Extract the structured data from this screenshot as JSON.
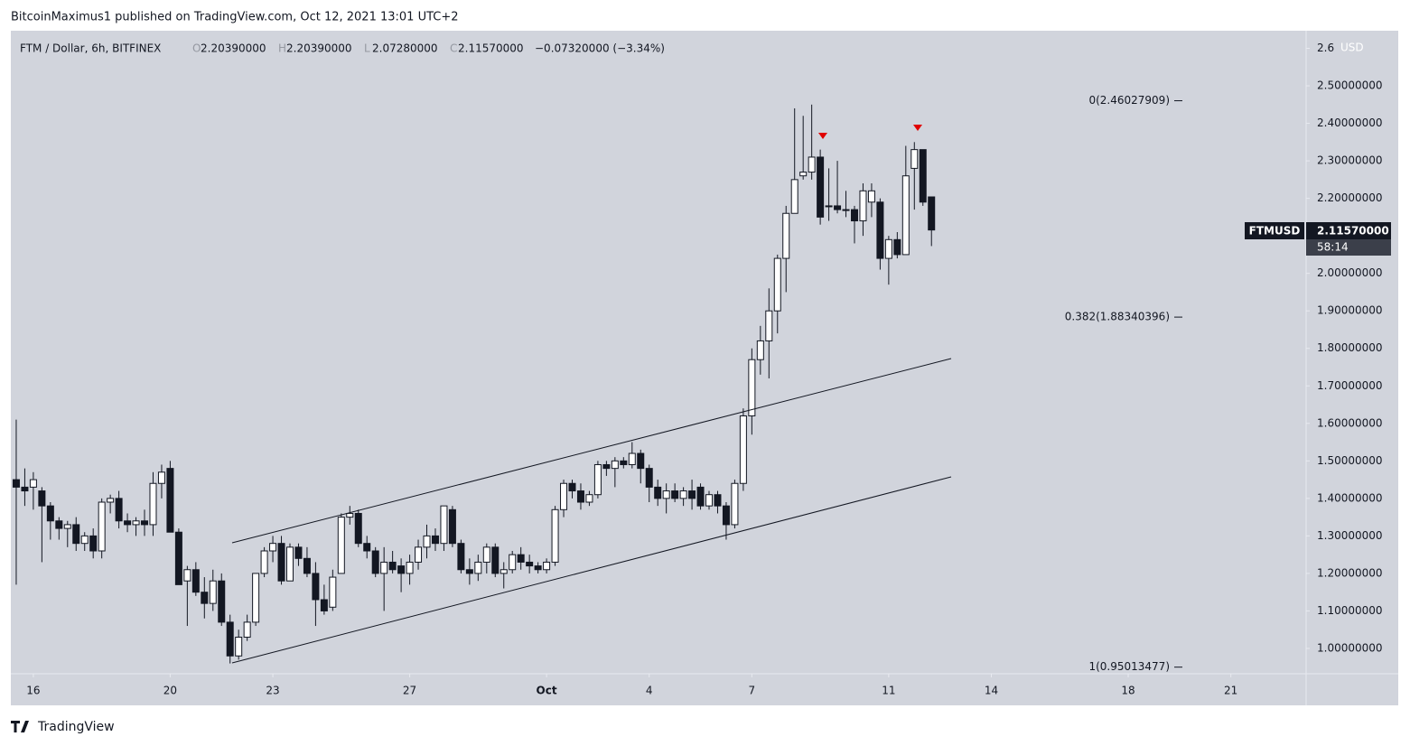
{
  "header": {
    "byline": "BitcoinMaximus1 published on TradingView.com, Oct 12, 2021 13:01 UTC+2"
  },
  "footer": {
    "brand": "TradingView"
  },
  "chart_data": {
    "type": "candlestick",
    "symbol_line": "FTM / Dollar, 6h, BITFINEX",
    "ohlc_header": [
      {
        "key": "O",
        "text": "2.20390000"
      },
      {
        "key": "H",
        "text": "2.20390000"
      },
      {
        "key": "L",
        "text": "2.07280000"
      },
      {
        "key": "C",
        "text": "2.11570000"
      }
    ],
    "change_text": "−0.07320000 (−3.34%)",
    "currency": "USD",
    "ticker": "FTMUSD",
    "last_price_label": "2.11570000",
    "countdown": "58:14",
    "up_color": "#ffffff",
    "down_color": "#131722",
    "ylim": [
      0.9325,
      2.647
    ],
    "xlim": [
      -0.63,
      150.8
    ],
    "yticks": [
      {
        "value": 1.0,
        "label": "1.00000000"
      },
      {
        "value": 1.1,
        "label": "1.10000000"
      },
      {
        "value": 1.2,
        "label": "1.20000000"
      },
      {
        "value": 1.3,
        "label": "1.30000000"
      },
      {
        "value": 1.4,
        "label": "1.40000000"
      },
      {
        "value": 1.5,
        "label": "1.50000000"
      },
      {
        "value": 1.6,
        "label": "1.60000000"
      },
      {
        "value": 1.7,
        "label": "1.70000000"
      },
      {
        "value": 1.8,
        "label": "1.80000000"
      },
      {
        "value": 1.9,
        "label": "1.90000000"
      },
      {
        "value": 2.0,
        "label": "2.00000000"
      },
      {
        "value": 2.1,
        "label": "2.10000000"
      },
      {
        "value": 2.2,
        "label": "2.20000000"
      },
      {
        "value": 2.3,
        "label": "2.30000000"
      },
      {
        "value": 2.4,
        "label": "2.40000000"
      },
      {
        "value": 2.5,
        "label": "2.50000000"
      },
      2.6
    ],
    "xticks": [
      {
        "value": 2,
        "label": "16"
      },
      {
        "value": 18,
        "label": "20"
      },
      {
        "value": 30,
        "label": "23"
      },
      {
        "value": 46,
        "label": "27"
      },
      {
        "value": 62,
        "label": "Oct"
      },
      {
        "value": 74,
        "label": "4"
      },
      {
        "value": 86,
        "label": "7"
      },
      {
        "value": 102,
        "label": "11"
      },
      {
        "value": 114,
        "label": "14"
      },
      {
        "value": 130,
        "label": "18"
      },
      {
        "value": 142,
        "label": "21"
      }
    ],
    "fib_levels": [
      {
        "price": 2.46027909,
        "label": "0(2.46027909)"
      },
      {
        "price": 1.88340396,
        "label": "0.382(1.88340396)"
      },
      {
        "price": 0.95013477,
        "label": "1(0.95013477)"
      }
    ],
    "candles": [
      [
        1.45,
        1.61,
        1.17,
        1.43
      ],
      [
        1.43,
        1.48,
        1.38,
        1.42
      ],
      [
        1.43,
        1.47,
        1.37,
        1.45
      ],
      [
        1.42,
        1.43,
        1.23,
        1.38
      ],
      [
        1.38,
        1.39,
        1.29,
        1.34
      ],
      [
        1.34,
        1.35,
        1.29,
        1.32
      ],
      [
        1.32,
        1.34,
        1.27,
        1.33
      ],
      [
        1.33,
        1.35,
        1.26,
        1.28
      ],
      [
        1.28,
        1.31,
        1.26,
        1.3
      ],
      [
        1.3,
        1.32,
        1.24,
        1.26
      ],
      [
        1.26,
        1.4,
        1.24,
        1.39
      ],
      [
        1.39,
        1.41,
        1.36,
        1.4
      ],
      [
        1.4,
        1.42,
        1.32,
        1.34
      ],
      [
        1.34,
        1.36,
        1.31,
        1.33
      ],
      [
        1.33,
        1.35,
        1.3,
        1.34
      ],
      [
        1.34,
        1.37,
        1.3,
        1.33
      ],
      [
        1.33,
        1.47,
        1.3,
        1.44
      ],
      [
        1.44,
        1.49,
        1.4,
        1.47
      ],
      [
        1.48,
        1.5,
        1.31,
        1.31
      ],
      [
        1.31,
        1.32,
        1.17,
        1.17
      ],
      [
        1.18,
        1.22,
        1.06,
        1.21
      ],
      [
        1.21,
        1.23,
        1.14,
        1.15
      ],
      [
        1.15,
        1.19,
        1.08,
        1.12
      ],
      [
        1.12,
        1.21,
        1.1,
        1.18
      ],
      [
        1.18,
        1.2,
        1.06,
        1.07
      ],
      [
        1.07,
        1.09,
        0.96,
        0.98
      ],
      [
        0.98,
        1.05,
        0.97,
        1.03
      ],
      [
        1.03,
        1.09,
        1.02,
        1.07
      ],
      [
        1.07,
        1.2,
        1.06,
        1.2
      ],
      [
        1.2,
        1.27,
        1.19,
        1.26
      ],
      [
        1.26,
        1.3,
        1.23,
        1.28
      ],
      [
        1.28,
        1.3,
        1.17,
        1.18
      ],
      [
        1.18,
        1.28,
        1.18,
        1.27
      ],
      [
        1.27,
        1.28,
        1.22,
        1.24
      ],
      [
        1.24,
        1.27,
        1.19,
        1.2
      ],
      [
        1.2,
        1.23,
        1.06,
        1.13
      ],
      [
        1.13,
        1.17,
        1.09,
        1.1
      ],
      [
        1.11,
        1.21,
        1.1,
        1.19
      ],
      [
        1.2,
        1.36,
        1.2,
        1.35
      ],
      [
        1.35,
        1.38,
        1.33,
        1.36
      ],
      [
        1.36,
        1.37,
        1.27,
        1.28
      ],
      [
        1.28,
        1.3,
        1.24,
        1.26
      ],
      [
        1.26,
        1.27,
        1.19,
        1.2
      ],
      [
        1.2,
        1.27,
        1.1,
        1.23
      ],
      [
        1.23,
        1.26,
        1.2,
        1.21
      ],
      [
        1.22,
        1.24,
        1.15,
        1.2
      ],
      [
        1.2,
        1.25,
        1.17,
        1.23
      ],
      [
        1.23,
        1.29,
        1.21,
        1.27
      ],
      [
        1.27,
        1.33,
        1.24,
        1.3
      ],
      [
        1.3,
        1.32,
        1.26,
        1.28
      ],
      [
        1.28,
        1.38,
        1.26,
        1.38
      ],
      [
        1.37,
        1.38,
        1.27,
        1.28
      ],
      [
        1.28,
        1.29,
        1.2,
        1.21
      ],
      [
        1.21,
        1.24,
        1.17,
        1.2
      ],
      [
        1.2,
        1.25,
        1.18,
        1.23
      ],
      [
        1.23,
        1.28,
        1.2,
        1.27
      ],
      [
        1.27,
        1.28,
        1.19,
        1.2
      ],
      [
        1.2,
        1.23,
        1.16,
        1.21
      ],
      [
        1.21,
        1.26,
        1.2,
        1.25
      ],
      [
        1.25,
        1.27,
        1.21,
        1.23
      ],
      [
        1.23,
        1.25,
        1.2,
        1.22
      ],
      [
        1.22,
        1.23,
        1.2,
        1.21
      ],
      [
        1.21,
        1.24,
        1.2,
        1.23
      ],
      [
        1.23,
        1.38,
        1.22,
        1.37
      ],
      [
        1.37,
        1.45,
        1.35,
        1.44
      ],
      [
        1.44,
        1.45,
        1.4,
        1.42
      ],
      [
        1.42,
        1.44,
        1.37,
        1.39
      ],
      [
        1.39,
        1.42,
        1.38,
        1.41
      ],
      [
        1.41,
        1.5,
        1.4,
        1.49
      ],
      [
        1.49,
        1.5,
        1.46,
        1.48
      ],
      [
        1.48,
        1.51,
        1.43,
        1.5
      ],
      [
        1.5,
        1.51,
        1.48,
        1.49
      ],
      [
        1.49,
        1.55,
        1.48,
        1.52
      ],
      [
        1.52,
        1.53,
        1.44,
        1.48
      ],
      [
        1.48,
        1.49,
        1.39,
        1.43
      ],
      [
        1.43,
        1.45,
        1.38,
        1.4
      ],
      [
        1.4,
        1.44,
        1.36,
        1.42
      ],
      [
        1.42,
        1.44,
        1.39,
        1.4
      ],
      [
        1.4,
        1.43,
        1.38,
        1.42
      ],
      [
        1.42,
        1.45,
        1.37,
        1.4
      ],
      [
        1.43,
        1.44,
        1.37,
        1.38
      ],
      [
        1.38,
        1.42,
        1.37,
        1.41
      ],
      [
        1.41,
        1.42,
        1.36,
        1.38
      ],
      [
        1.38,
        1.39,
        1.29,
        1.33
      ],
      [
        1.33,
        1.45,
        1.32,
        1.44
      ],
      [
        1.44,
        1.64,
        1.42,
        1.62
      ],
      [
        1.62,
        1.8,
        1.57,
        1.77
      ],
      [
        1.77,
        1.86,
        1.73,
        1.82
      ],
      [
        1.82,
        1.96,
        1.72,
        1.9
      ],
      [
        1.9,
        2.05,
        1.84,
        2.04
      ],
      [
        2.04,
        2.18,
        1.95,
        2.16
      ],
      [
        2.16,
        2.44,
        2.16,
        2.25
      ],
      [
        2.26,
        2.42,
        2.25,
        2.27
      ],
      [
        2.27,
        2.45,
        2.25,
        2.31
      ],
      [
        2.31,
        2.33,
        2.13,
        2.15
      ],
      [
        2.18,
        2.28,
        2.14,
        2.18
      ],
      [
        2.18,
        2.3,
        2.16,
        2.17
      ],
      [
        2.17,
        2.22,
        2.15,
        2.17
      ],
      [
        2.17,
        2.18,
        2.08,
        2.14
      ],
      [
        2.14,
        2.24,
        2.1,
        2.22
      ],
      [
        2.19,
        2.24,
        2.15,
        2.22
      ],
      [
        2.19,
        2.2,
        2.01,
        2.04
      ],
      [
        2.04,
        2.1,
        1.97,
        2.09
      ],
      [
        2.09,
        2.11,
        2.04,
        2.05
      ],
      [
        2.05,
        2.34,
        2.05,
        2.26
      ],
      [
        2.28,
        2.35,
        2.17,
        2.33
      ],
      [
        2.33,
        2.33,
        2.18,
        2.19
      ],
      [
        2.2039,
        2.2039,
        2.0728,
        2.1157
      ]
    ]
  }
}
